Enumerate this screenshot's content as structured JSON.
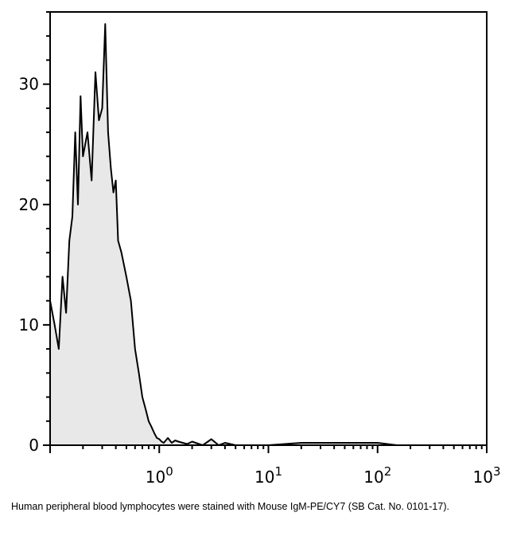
{
  "chart_data": {
    "type": "area",
    "title": "",
    "xlabel": "",
    "ylabel": "",
    "x_scale": "log",
    "xlim": [
      0.1,
      1000
    ],
    "ylim": [
      0,
      36
    ],
    "x_tick_labels": [
      {
        "value": 1,
        "base": "10",
        "exp": "0"
      },
      {
        "value": 10,
        "base": "10",
        "exp": "1"
      },
      {
        "value": 100,
        "base": "10",
        "exp": "2"
      },
      {
        "value": 1000,
        "base": "10",
        "exp": "3"
      }
    ],
    "y_ticks": [
      0,
      10,
      20,
      30
    ],
    "fill_color": "#e8e8e8",
    "line_color": "#000000",
    "grid": false,
    "series": [
      {
        "x": [
          0.1,
          0.11,
          0.12,
          0.13,
          0.14,
          0.15,
          0.16,
          0.17,
          0.18,
          0.19,
          0.2,
          0.22,
          0.24,
          0.26,
          0.28,
          0.3,
          0.32,
          0.34,
          0.36,
          0.38,
          0.4,
          0.42,
          0.45,
          0.5,
          0.55,
          0.6,
          0.65,
          0.7,
          0.75,
          0.8,
          0.85,
          0.9,
          0.95,
          1.0,
          1.05,
          1.1,
          1.2,
          1.3,
          1.4,
          1.5,
          1.8,
          2.0,
          2.5,
          3.0,
          3.5,
          4.0,
          5,
          10,
          20,
          50,
          100,
          150,
          300,
          1000
        ],
        "y": [
          12,
          10,
          8,
          14,
          11,
          17,
          19,
          26,
          20,
          29,
          24,
          26,
          22,
          31,
          27,
          28,
          35,
          26,
          23,
          21,
          22,
          17,
          16,
          14,
          12,
          8,
          6,
          4,
          3,
          2,
          1.5,
          1,
          0.6,
          0.5,
          0.3,
          0.2,
          0.6,
          0.2,
          0.4,
          0.3,
          0.1,
          0.3,
          0,
          0.5,
          0,
          0.2,
          0,
          0,
          0.2,
          0.2,
          0.2,
          0,
          0,
          0
        ]
      }
    ]
  },
  "caption": "Human peripheral blood lymphocytes were stained with Mouse IgM-PE/CY7 (SB Cat. No. 0101-17)."
}
